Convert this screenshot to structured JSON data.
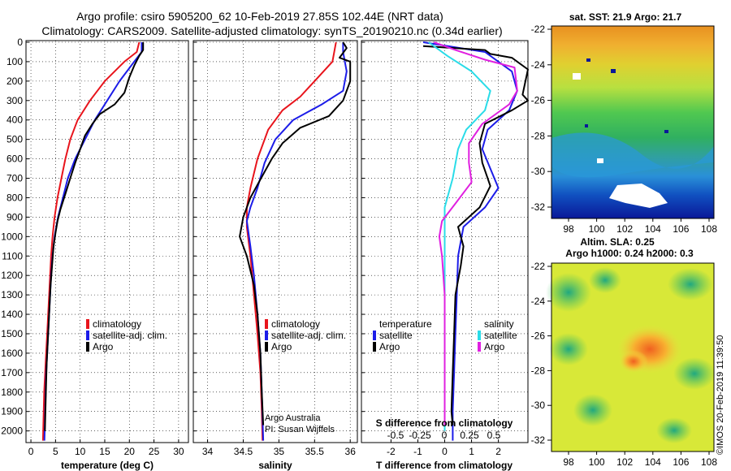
{
  "header": {
    "line1": "Argo profile: csiro 5905200_62 10-Feb-2019 27.85S 102.44E (NRT data)",
    "line2": "Climatology: CARS2009. Satellite-adjusted climatology: synTS_20190210.nc (0.34d earlier)"
  },
  "colors": {
    "climatology": "#e8141c",
    "satellite": "#1c1ce8",
    "argo": "#000000",
    "sal_sat": "#2adce8",
    "sal_argo": "#e020e0"
  },
  "depth_axis": {
    "ticks": [
      0,
      100,
      200,
      300,
      400,
      500,
      600,
      700,
      800,
      900,
      1000,
      1100,
      1200,
      1300,
      1400,
      1500,
      1600,
      1700,
      1800,
      1900,
      2000
    ],
    "range": [
      0,
      2060
    ]
  },
  "chart_data": [
    {
      "type": "line",
      "id": "temperature",
      "xlabel": "temperature (deg C)",
      "xlim": [
        -1,
        32
      ],
      "xticks": [
        0,
        5,
        10,
        15,
        20,
        25,
        30
      ],
      "legend": [
        "climatology",
        "satellite-adj. clim.",
        "Argo"
      ],
      "series": [
        {
          "name": "climatology",
          "color": "#e8141c",
          "points": [
            [
              22,
              0
            ],
            [
              21.5,
              50
            ],
            [
              19,
              100
            ],
            [
              15,
              200
            ],
            [
              12,
              300
            ],
            [
              9.5,
              400
            ],
            [
              8,
              500
            ],
            [
              7,
              600
            ],
            [
              6.2,
              700
            ],
            [
              5.4,
              800
            ],
            [
              4.8,
              900
            ],
            [
              4.4,
              1000
            ],
            [
              4.1,
              1100
            ],
            [
              3.9,
              1200
            ],
            [
              3.7,
              1300
            ],
            [
              3.5,
              1400
            ],
            [
              3.3,
              1500
            ],
            [
              3.1,
              1600
            ],
            [
              2.9,
              1700
            ],
            [
              2.7,
              1800
            ],
            [
              2.6,
              1900
            ],
            [
              2.5,
              2000
            ],
            [
              2.45,
              2050
            ]
          ]
        },
        {
          "name": "satellite-adj. clim.",
          "color": "#1c1ce8",
          "points": [
            [
              22.5,
              0
            ],
            [
              22.5,
              50
            ],
            [
              21,
              100
            ],
            [
              18,
              200
            ],
            [
              15.5,
              300
            ],
            [
              13,
              400
            ],
            [
              11,
              500
            ],
            [
              9,
              600
            ],
            [
              7.5,
              700
            ],
            [
              6.5,
              800
            ],
            [
              5.5,
              900
            ],
            [
              4.8,
              1000
            ],
            [
              4.4,
              1100
            ],
            [
              4.1,
              1200
            ],
            [
              3.9,
              1300
            ],
            [
              3.7,
              1400
            ],
            [
              3.5,
              1500
            ],
            [
              3.3,
              1600
            ],
            [
              3.1,
              1700
            ],
            [
              3,
              1800
            ],
            [
              2.9,
              1900
            ],
            [
              2.8,
              2000
            ],
            [
              2.75,
              2050
            ]
          ]
        },
        {
          "name": "Argo",
          "color": "#000000",
          "points": [
            [
              22.8,
              0
            ],
            [
              22.8,
              40
            ],
            [
              22,
              70
            ],
            [
              21,
              120
            ],
            [
              20,
              180
            ],
            [
              19,
              260
            ],
            [
              17,
              320
            ],
            [
              14,
              370
            ],
            [
              12.5,
              420
            ],
            [
              11,
              480
            ],
            [
              10,
              550
            ],
            [
              9,
              620
            ],
            [
              8,
              700
            ],
            [
              7,
              780
            ],
            [
              6,
              860
            ],
            [
              5.4,
              920
            ],
            [
              5,
              980
            ],
            [
              4.6,
              1050
            ],
            [
              4.3,
              1150
            ],
            [
              4,
              1250
            ],
            [
              3.8,
              1350
            ],
            [
              3.6,
              1450
            ],
            [
              3.4,
              1550
            ],
            [
              3.2,
              1650
            ],
            [
              3.1,
              1750
            ],
            [
              3,
              1850
            ],
            [
              2.9,
              1950
            ],
            [
              2.85,
              2000
            ]
          ]
        }
      ]
    },
    {
      "type": "line",
      "id": "salinity",
      "xlabel": "salinity",
      "xlim": [
        33.8,
        36.1
      ],
      "xticks": [
        34,
        34.5,
        35,
        35.5,
        36
      ],
      "legend": [
        "climatology",
        "satellite-adj. clim.",
        "Argo"
      ],
      "series": [
        {
          "name": "climatology",
          "color": "#e8141c",
          "points": [
            [
              35.8,
              0
            ],
            [
              35.75,
              100
            ],
            [
              35.5,
              200
            ],
            [
              35.3,
              280
            ],
            [
              35.05,
              350
            ],
            [
              34.85,
              450
            ],
            [
              34.7,
              600
            ],
            [
              34.6,
              750
            ],
            [
              34.55,
              850
            ],
            [
              34.55,
              950
            ],
            [
              34.6,
              1100
            ],
            [
              34.65,
              1300
            ],
            [
              34.7,
              1500
            ],
            [
              34.74,
              1700
            ],
            [
              34.76,
              1900
            ],
            [
              34.77,
              2050
            ]
          ]
        },
        {
          "name": "satellite-adj. clim.",
          "color": "#1c1ce8",
          "points": [
            [
              35.9,
              0
            ],
            [
              35.9,
              50
            ],
            [
              35.95,
              150
            ],
            [
              35.9,
              250
            ],
            [
              35.6,
              320
            ],
            [
              35.2,
              400
            ],
            [
              34.95,
              500
            ],
            [
              34.8,
              620
            ],
            [
              34.7,
              750
            ],
            [
              34.6,
              850
            ],
            [
              34.55,
              920
            ],
            [
              34.6,
              1050
            ],
            [
              34.65,
              1200
            ],
            [
              34.7,
              1400
            ],
            [
              34.74,
              1600
            ],
            [
              34.76,
              1800
            ],
            [
              34.78,
              2050
            ]
          ]
        },
        {
          "name": "Argo",
          "color": "#000000",
          "points": [
            [
              35.9,
              0
            ],
            [
              35.95,
              30
            ],
            [
              35.85,
              80
            ],
            [
              36,
              100
            ],
            [
              36,
              200
            ],
            [
              35.9,
              300
            ],
            [
              35.7,
              380
            ],
            [
              35.3,
              440
            ],
            [
              35.05,
              520
            ],
            [
              34.9,
              600
            ],
            [
              34.75,
              700
            ],
            [
              34.6,
              800
            ],
            [
              34.5,
              900
            ],
            [
              34.45,
              1000
            ],
            [
              34.55,
              1100
            ],
            [
              34.65,
              1250
            ],
            [
              34.7,
              1400
            ],
            [
              34.74,
              1600
            ],
            [
              34.76,
              1800
            ],
            [
              34.78,
              1970
            ]
          ]
        }
      ]
    },
    {
      "type": "line",
      "id": "difference",
      "xlabel": "T difference from climatology",
      "xlim": [
        -3.1,
        3.1
      ],
      "xticks": [
        -2,
        -1,
        0,
        1,
        2
      ],
      "sublabel": "S difference from climatology",
      "subticks": [
        "-0.5",
        "-0.25",
        "0",
        "0.25",
        "0.5"
      ],
      "legend_left_title": "temperature",
      "legend_right_title": "salinity",
      "legend_left": [
        "satellite",
        "Argo"
      ],
      "legend_right": [
        "satellite",
        "Argo"
      ],
      "series": [
        {
          "name": "T satellite",
          "color": "#1c1ce8",
          "points": [
            [
              -0.8,
              0
            ],
            [
              1.5,
              50
            ],
            [
              2.5,
              150
            ],
            [
              2.7,
              250
            ],
            [
              2.4,
              350
            ],
            [
              1.6,
              450
            ],
            [
              1.4,
              550
            ],
            [
              1.7,
              650
            ],
            [
              2,
              750
            ],
            [
              1.5,
              850
            ],
            [
              0.7,
              950
            ],
            [
              0.5,
              1100
            ],
            [
              0.45,
              1300
            ],
            [
              0.4,
              1500
            ],
            [
              0.35,
              1700
            ],
            [
              0.3,
              1900
            ],
            [
              0.3,
              2050
            ]
          ]
        },
        {
          "name": "T Argo",
          "color": "#000000",
          "points": [
            [
              -0.8,
              20
            ],
            [
              1.5,
              40
            ],
            [
              1.7,
              60
            ],
            [
              2.5,
              80
            ],
            [
              3.1,
              140
            ],
            [
              2.9,
              270
            ],
            [
              3.1,
              300
            ],
            [
              2.5,
              350
            ],
            [
              1.5,
              420
            ],
            [
              1.3,
              520
            ],
            [
              1.4,
              620
            ],
            [
              1.7,
              740
            ],
            [
              1.3,
              850
            ],
            [
              0.5,
              950
            ],
            [
              0.7,
              1050
            ],
            [
              0.6,
              1150
            ],
            [
              0.4,
              1300
            ],
            [
              0.35,
              1500
            ],
            [
              0.3,
              1700
            ],
            [
              0.25,
              1900
            ],
            [
              0.3,
              1970
            ]
          ]
        },
        {
          "name": "S satellite",
          "color": "#2adce8",
          "points": [
            [
              -0.6,
              0
            ],
            [
              0.1,
              70
            ],
            [
              1,
              150
            ],
            [
              1.7,
              250
            ],
            [
              1.5,
              350
            ],
            [
              0.8,
              450
            ],
            [
              0.5,
              550
            ],
            [
              0.3,
              700
            ],
            [
              0,
              850
            ],
            [
              0,
              1000
            ],
            [
              0,
              1200
            ],
            [
              0,
              1400
            ],
            [
              0,
              1600
            ],
            [
              0,
              1800
            ],
            [
              0,
              2000
            ]
          ]
        },
        {
          "name": "S Argo",
          "color": "#e020e0",
          "points": [
            [
              -0.4,
              0
            ],
            [
              0.4,
              40
            ],
            [
              1.5,
              90
            ],
            [
              2.6,
              130
            ],
            [
              2.7,
              250
            ],
            [
              2.4,
              320
            ],
            [
              1.4,
              420
            ],
            [
              0.9,
              520
            ],
            [
              0.9,
              620
            ],
            [
              1,
              720
            ],
            [
              0.4,
              830
            ],
            [
              -0.1,
              920
            ],
            [
              -0.2,
              1000
            ],
            [
              -0.1,
              1100
            ],
            [
              0,
              1300
            ],
            [
              0,
              1500
            ],
            [
              0,
              1800
            ],
            [
              0,
              1970
            ]
          ]
        }
      ]
    }
  ],
  "attribution": {
    "org": "Argo Australia",
    "pi": "PI: Susan Wijffels"
  },
  "sst_map": {
    "title": "sat. SST: 21.9 Argo: 21.7",
    "yticks": [
      "-22",
      "-24",
      "-26",
      "-28",
      "-30",
      "-32"
    ],
    "xticks": [
      "98",
      "100",
      "102",
      "104",
      "106",
      "108"
    ]
  },
  "sla_map": {
    "title1": "Altim. SLA: 0.25",
    "title2": "Argo h1000: 0.24 h2000: 0.3",
    "yticks": [
      "-22",
      "-24",
      "-26",
      "-28",
      "-30",
      "-32"
    ],
    "xticks": [
      "98",
      "100",
      "102",
      "104",
      "106",
      "108"
    ]
  },
  "footer": {
    "stamp": "©IMOS 20-Feb-2019 11:39:50"
  }
}
